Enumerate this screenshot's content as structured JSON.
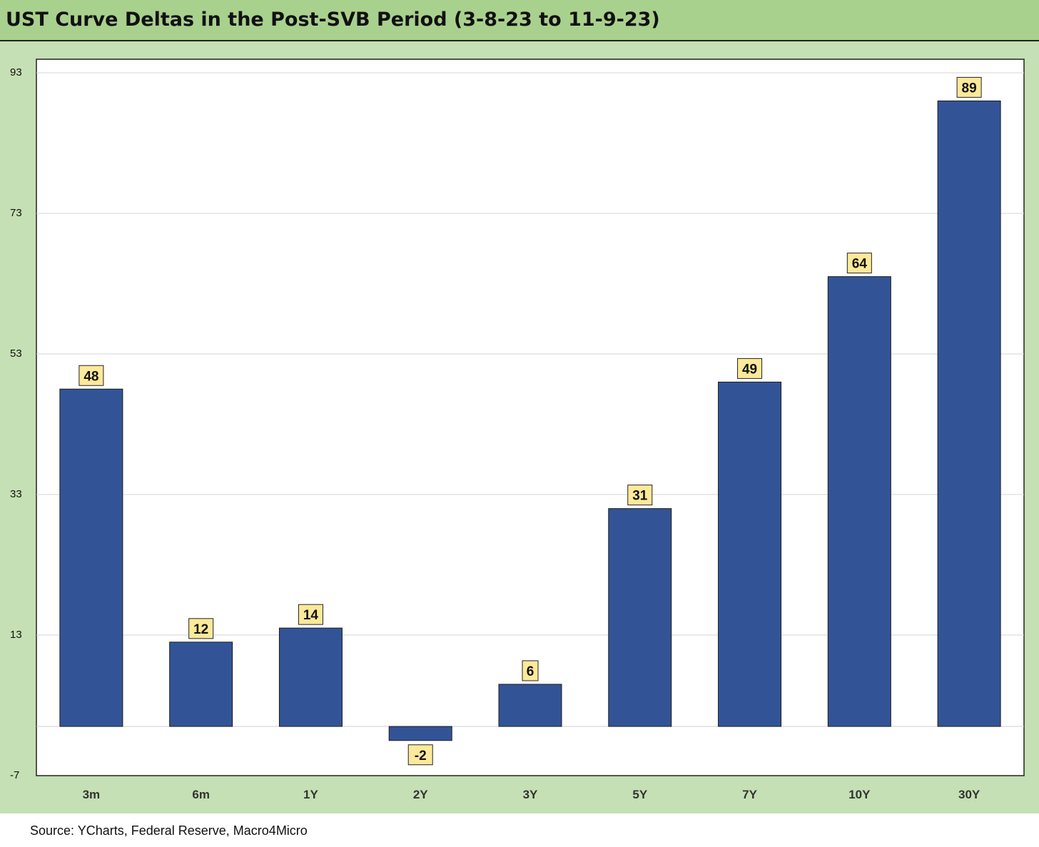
{
  "title": "UST Curve Deltas in the Post-SVB Period (3-8-23 to 11-9-23)",
  "source": "Source: YCharts, Federal Reserve, Macro4Micro",
  "colors": {
    "bar": "#325497",
    "label_bg": "#fde99a",
    "frame": "#c5e0b4",
    "title_bg": "#a9d18e"
  },
  "chart_data": {
    "type": "bar",
    "title": "UST Curve Deltas in the Post-SVB Period (3-8-23 to 11-9-23)",
    "categories": [
      "3m",
      "6m",
      "1Y",
      "2Y",
      "3Y",
      "5Y",
      "7Y",
      "10Y",
      "30Y"
    ],
    "values": [
      48,
      12,
      14,
      -2,
      6,
      31,
      49,
      64,
      89
    ],
    "data_labels": [
      "48",
      "12",
      "14",
      "-2",
      "6",
      "31",
      "49",
      "64",
      "89"
    ],
    "ylim": [
      -7,
      93
    ],
    "yticks": [
      -7,
      13,
      33,
      53,
      73,
      93
    ],
    "grid": true,
    "legend": "none",
    "xlabel": "",
    "ylabel": ""
  }
}
